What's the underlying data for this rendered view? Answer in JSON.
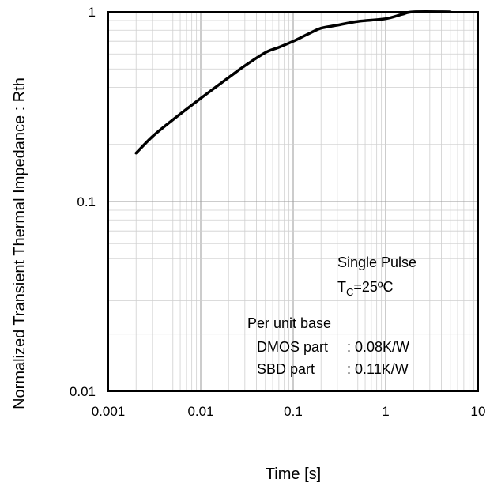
{
  "chart_data": {
    "type": "line",
    "title": "",
    "xlabel": "Time [s]",
    "ylabel": "Normalized Transient Thermal Impedance : Rth",
    "xscale": "log",
    "yscale": "log",
    "xlim": [
      0.001,
      10
    ],
    "ylim": [
      0.01,
      1
    ],
    "grid": true,
    "x_ticks": [
      "0.001",
      "0.01",
      "0.1",
      "1",
      "10"
    ],
    "y_ticks": [
      "0.01",
      "0.1",
      "1"
    ],
    "line_color": "#000000",
    "series": [
      {
        "points": [
          [
            0.002,
            0.18
          ],
          [
            0.003,
            0.22
          ],
          [
            0.005,
            0.27
          ],
          [
            0.01,
            0.35
          ],
          [
            0.02,
            0.45
          ],
          [
            0.03,
            0.52
          ],
          [
            0.05,
            0.61
          ],
          [
            0.07,
            0.65
          ],
          [
            0.1,
            0.7
          ],
          [
            0.15,
            0.77
          ],
          [
            0.2,
            0.82
          ],
          [
            0.3,
            0.85
          ],
          [
            0.5,
            0.89
          ],
          [
            1.0,
            0.92
          ],
          [
            1.5,
            0.97
          ],
          [
            2.0,
            1.0
          ],
          [
            5.0,
            1.0
          ]
        ]
      }
    ],
    "annotations": {
      "pulse_label": "Single Pulse",
      "tc_prefix": "T",
      "tc_sub": "C",
      "tc_value": "=25ºC",
      "base_label": "Per unit base",
      "dmos_label": "DMOS part",
      "dmos_value": ": 0.08K/W",
      "sbd_label": "SBD part",
      "sbd_value": ": 0.11K/W"
    }
  }
}
